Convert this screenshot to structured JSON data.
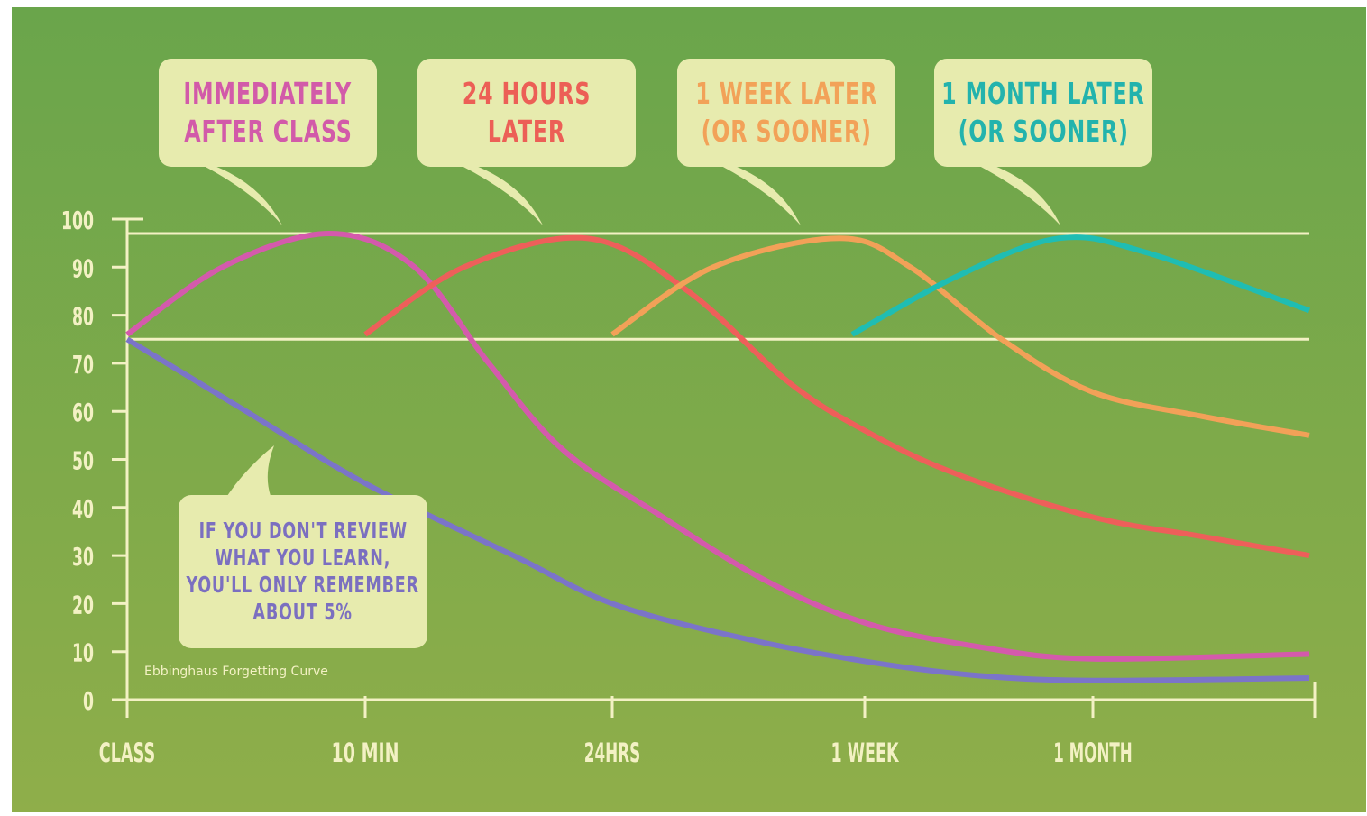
{
  "chart_data": {
    "type": "line",
    "x": [
      "CLASS",
      "10 MIN",
      "24HRS",
      "1 WEEK",
      "1 MONTH"
    ],
    "y_ticks": [
      "0",
      "10",
      "20",
      "30",
      "40",
      "50",
      "60",
      "70",
      "80",
      "90",
      "100"
    ],
    "ylim": [
      0,
      100
    ],
    "reference_lines": [
      97,
      75
    ],
    "grid": false,
    "series": [
      {
        "color": "#7b74c9",
        "points": [
          [
            0,
            75
          ],
          [
            0.5,
            60
          ],
          [
            1,
            45
          ],
          [
            1.6,
            30
          ],
          [
            2,
            20
          ],
          [
            2.5,
            13
          ],
          [
            3,
            8
          ],
          [
            3.5,
            5
          ],
          [
            4,
            4
          ],
          [
            4.8,
            4.5
          ]
        ]
      },
      {
        "color": "#d45aac",
        "points": [
          [
            0,
            76
          ],
          [
            0.4,
            90
          ],
          [
            0.85,
            97
          ],
          [
            1.2,
            90
          ],
          [
            1.5,
            70
          ],
          [
            1.8,
            52
          ],
          [
            2.2,
            38
          ],
          [
            2.6,
            25
          ],
          [
            3,
            16
          ],
          [
            3.5,
            11
          ],
          [
            4,
            8.5
          ],
          [
            4.8,
            9.5
          ]
        ]
      },
      {
        "color": "#ee5f5a",
        "points": [
          [
            1,
            76
          ],
          [
            1.4,
            90
          ],
          [
            1.9,
            96
          ],
          [
            2.3,
            85
          ],
          [
            2.7,
            66
          ],
          [
            3,
            56
          ],
          [
            3.4,
            47
          ],
          [
            4,
            38
          ],
          [
            4.4,
            34
          ],
          [
            4.8,
            30
          ]
        ]
      },
      {
        "color": "#f2a158",
        "points": [
          [
            2,
            76
          ],
          [
            2.4,
            90
          ],
          [
            2.9,
            96
          ],
          [
            3.2,
            90
          ],
          [
            3.6,
            75
          ],
          [
            4,
            64
          ],
          [
            4.4,
            59
          ],
          [
            4.8,
            55
          ]
        ]
      },
      {
        "color": "#1fbdb3",
        "points": [
          [
            2.95,
            76
          ],
          [
            3.4,
            88
          ],
          [
            3.85,
            96
          ],
          [
            4.2,
            93
          ],
          [
            4.8,
            81
          ]
        ]
      }
    ],
    "annotations": [
      {
        "lines": [
          "IMMEDIATELY",
          "AFTER CLASS"
        ],
        "color": "#d25aa9"
      },
      {
        "lines": [
          "24 HOURS",
          "LATER"
        ],
        "color": "#ec5f56"
      },
      {
        "lines": [
          "1 WEEK LATER",
          "(OR SOONER)"
        ],
        "color": "#f2a258"
      },
      {
        "lines": [
          "1 MONTH LATER",
          "(OR SOONER)"
        ],
        "color": "#23b3ad"
      },
      {
        "lines": [
          "IF YOU DON'T REVIEW",
          "WHAT YOU LEARN,",
          "YOU'LL ONLY REMEMBER",
          "ABOUT 5%"
        ],
        "color": "#7b6fc0"
      }
    ],
    "caption": "Ebbinghaus Forgetting Curve"
  },
  "colors": {
    "background_top": "#6aa54b",
    "background_bottom": "#8fae4a",
    "axis": "#f3f1c4",
    "bubble": "#e7ebae"
  }
}
